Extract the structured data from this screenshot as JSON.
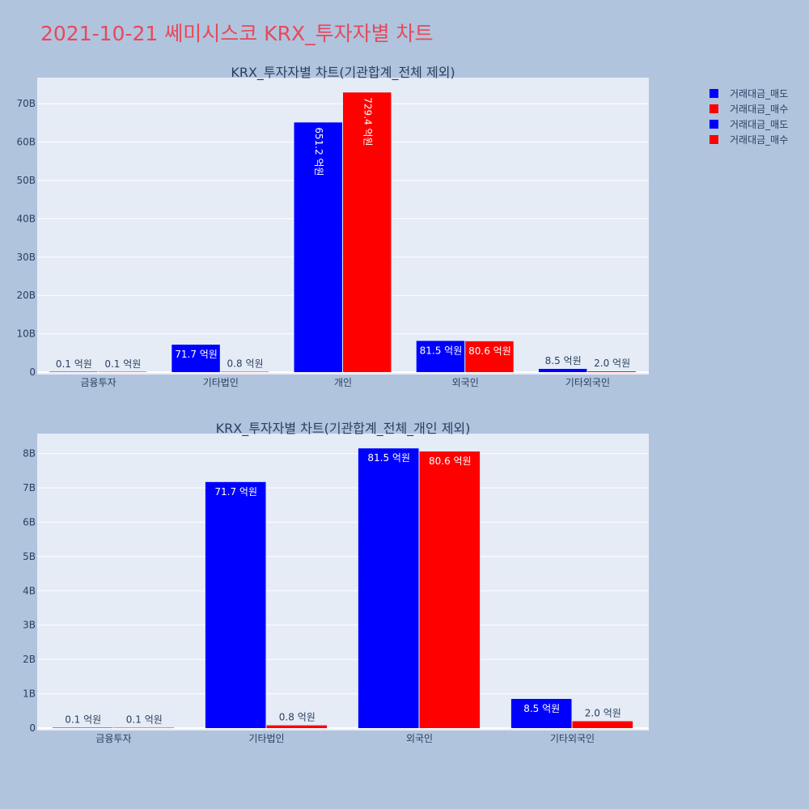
{
  "page_title": "2021-10-21 쎄미시스코 KRX_투자자별 차트",
  "colors": {
    "sell": "#0000ff",
    "buy": "#ff0000",
    "background": "#b0c4de",
    "plot_bg": "#e5ecf6"
  },
  "legend": [
    {
      "name": "거래대금_매도",
      "color": "#0000ff"
    },
    {
      "name": "거래대금_매수",
      "color": "#ff0000"
    },
    {
      "name": "거래대금_매도",
      "color": "#0000ff"
    },
    {
      "name": "거래대금_매수",
      "color": "#ff0000"
    }
  ],
  "chart_data": [
    {
      "type": "bar",
      "title": "KRX_투자자별 차트(기관합계_전체 제외)",
      "categories": [
        "금융투자",
        "기타법인",
        "개인",
        "외국인",
        "기타외국인"
      ],
      "series": [
        {
          "name": "거래대금_매도",
          "color": "#0000ff",
          "values": [
            10000000,
            7170000000,
            65120000000,
            8150000000,
            850000000
          ],
          "labels": [
            "0.1 억원",
            "71.7 억원",
            "651.2 억원",
            "81.5 억원",
            "8.5 억원"
          ]
        },
        {
          "name": "거래대금_매수",
          "color": "#ff0000",
          "values": [
            10000000,
            80000000,
            72940000000,
            8060000000,
            200000000
          ],
          "labels": [
            "0.1 억원",
            "0.8 억원",
            "729.4 억원",
            "80.6 억원",
            "2.0 억원"
          ]
        }
      ],
      "ylim": [
        0,
        76800000000
      ],
      "yticks": [
        0,
        10000000000,
        20000000000,
        30000000000,
        40000000000,
        50000000000,
        60000000000,
        70000000000
      ],
      "ytick_labels": [
        "0",
        "10B",
        "20B",
        "30B",
        "40B",
        "50B",
        "60B",
        "70B"
      ],
      "grid": true
    },
    {
      "type": "bar",
      "title": "KRX_투자자별 차트(기관합계_전체_개인 제외)",
      "categories": [
        "금융투자",
        "기타법인",
        "외국인",
        "기타외국인"
      ],
      "series": [
        {
          "name": "거래대금_매도",
          "color": "#0000ff",
          "values": [
            10000000,
            7170000000,
            8150000000,
            850000000
          ],
          "labels": [
            "0.1 억원",
            "71.7 억원",
            "81.5 억원",
            "8.5 억원"
          ]
        },
        {
          "name": "거래대금_매수",
          "color": "#ff0000",
          "values": [
            10000000,
            80000000,
            8060000000,
            200000000
          ],
          "labels": [
            "0.1 억원",
            "0.8 억원",
            "80.6 억원",
            "2.0 억원"
          ]
        }
      ],
      "ylim": [
        0,
        8580000000
      ],
      "yticks": [
        0,
        1000000000,
        2000000000,
        3000000000,
        4000000000,
        5000000000,
        6000000000,
        7000000000,
        8000000000
      ],
      "ytick_labels": [
        "0",
        "1B",
        "2B",
        "3B",
        "4B",
        "5B",
        "6B",
        "7B",
        "8B"
      ],
      "grid": true
    }
  ]
}
